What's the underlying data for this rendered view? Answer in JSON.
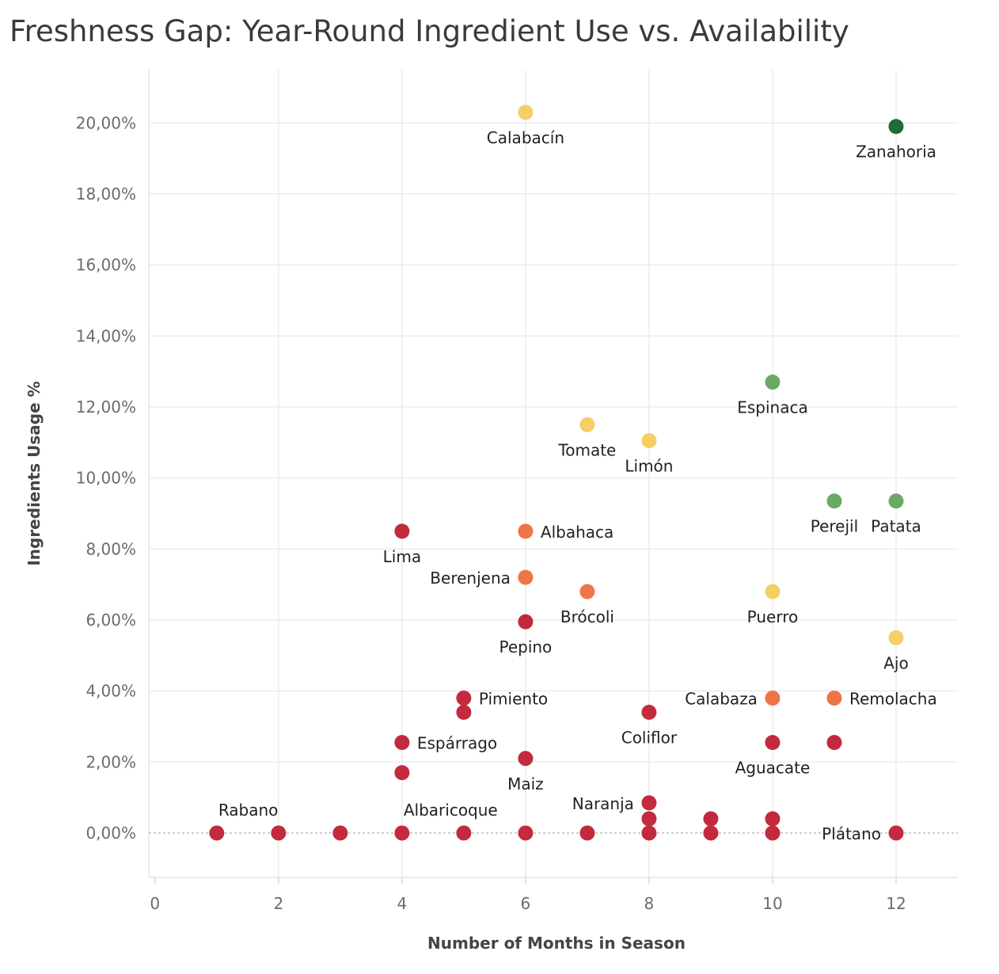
{
  "title": "Freshness Gap: Year-Round Ingredient Use vs. Availability",
  "chart_data": {
    "type": "scatter",
    "title": "Freshness Gap: Year-Round Ingredient Use vs. Availability",
    "xlabel": "Number of Months in Season",
    "ylabel": "Ingredients Usage %",
    "xlim": [
      -0.1,
      13
    ],
    "ylim": [
      -1.25,
      21.5
    ],
    "x_ticks": [
      {
        "value": 0,
        "label": "0"
      },
      {
        "value": 2,
        "label": "2"
      },
      {
        "value": 4,
        "label": "4"
      },
      {
        "value": 6,
        "label": "6"
      },
      {
        "value": 8,
        "label": "8"
      },
      {
        "value": 10,
        "label": "10"
      },
      {
        "value": 12,
        "label": "12"
      }
    ],
    "y_ticks": [
      {
        "value": 0,
        "label": "0,00%"
      },
      {
        "value": 2,
        "label": "2,00%"
      },
      {
        "value": 4,
        "label": "4,00%"
      },
      {
        "value": 6,
        "label": "6,00%"
      },
      {
        "value": 8,
        "label": "8,00%"
      },
      {
        "value": 10,
        "label": "10,00%"
      },
      {
        "value": 12,
        "label": "12,00%"
      },
      {
        "value": 14,
        "label": "14,00%"
      },
      {
        "value": 16,
        "label": "16,00%"
      },
      {
        "value": 18,
        "label": "18,00%"
      },
      {
        "value": 20,
        "label": "20,00%"
      }
    ],
    "grid": true,
    "reference_line": {
      "y": 0,
      "style": "dashed"
    },
    "colors": {
      "red": "#c32a3d",
      "orange": "#ee7546",
      "yellow": "#f4cf66",
      "green": "#6aa964",
      "darkgreen": "#1e6b3b"
    },
    "points": [
      {
        "x": 6,
        "y": 20.3,
        "name": "Calabacín",
        "color": "yellow",
        "label_pos": "below"
      },
      {
        "x": 12,
        "y": 19.9,
        "name": "Zanahoria",
        "color": "darkgreen",
        "label_pos": "below"
      },
      {
        "x": 10,
        "y": 12.7,
        "name": "Espinaca",
        "color": "green",
        "label_pos": "below"
      },
      {
        "x": 7,
        "y": 11.5,
        "name": "Tomate",
        "color": "yellow",
        "label_pos": "below"
      },
      {
        "x": 8,
        "y": 11.05,
        "name": "Limón",
        "color": "yellow",
        "label_pos": "below"
      },
      {
        "x": 11,
        "y": 9.35,
        "name": "Perejil",
        "color": "green",
        "label_pos": "below"
      },
      {
        "x": 12,
        "y": 9.35,
        "name": "Patata",
        "color": "green",
        "label_pos": "below"
      },
      {
        "x": 4,
        "y": 8.5,
        "name": "Lima",
        "color": "red",
        "label_pos": "below"
      },
      {
        "x": 6,
        "y": 8.5,
        "name": "Albahaca",
        "color": "orange",
        "label_pos": "right"
      },
      {
        "x": 6,
        "y": 7.2,
        "name": "Berenjena",
        "color": "orange",
        "label_pos": "left"
      },
      {
        "x": 7,
        "y": 6.8,
        "name": "Brócoli",
        "color": "orange",
        "label_pos": "below"
      },
      {
        "x": 10,
        "y": 6.8,
        "name": "Puerro",
        "color": "yellow",
        "label_pos": "below"
      },
      {
        "x": 6,
        "y": 5.95,
        "name": "Pepino",
        "color": "red",
        "label_pos": "below"
      },
      {
        "x": 12,
        "y": 5.5,
        "name": "Ajo",
        "color": "yellow",
        "label_pos": "below"
      },
      {
        "x": 5,
        "y": 3.8,
        "name": "Pimiento",
        "color": "red",
        "label_pos": "right"
      },
      {
        "x": 10,
        "y": 3.8,
        "name": "Calabaza",
        "color": "orange",
        "label_pos": "left"
      },
      {
        "x": 11,
        "y": 3.8,
        "name": "Remolacha",
        "color": "orange",
        "label_pos": "right"
      },
      {
        "x": 5,
        "y": 3.4,
        "name": "",
        "color": "red"
      },
      {
        "x": 8,
        "y": 3.4,
        "name": "Coliflor",
        "color": "red",
        "label_pos": "below"
      },
      {
        "x": 4,
        "y": 2.55,
        "name": "Espárrago",
        "color": "red",
        "label_pos": "right"
      },
      {
        "x": 10,
        "y": 2.55,
        "name": "Aguacate",
        "color": "red",
        "label_pos": "below"
      },
      {
        "x": 11,
        "y": 2.55,
        "name": "",
        "color": "red"
      },
      {
        "x": 6,
        "y": 2.1,
        "name": "Maiz",
        "color": "red",
        "label_pos": "below"
      },
      {
        "x": 4,
        "y": 1.7,
        "name": "",
        "color": "red"
      },
      {
        "x": 8,
        "y": 0.85,
        "name": "Naranja",
        "color": "red",
        "label_pos": "left"
      },
      {
        "x": 8,
        "y": 0.4,
        "name": "",
        "color": "red"
      },
      {
        "x": 9,
        "y": 0.4,
        "name": "",
        "color": "red"
      },
      {
        "x": 10,
        "y": 0.4,
        "name": "",
        "color": "red"
      },
      {
        "x": 1,
        "y": 0,
        "name": "Rabano",
        "color": "red",
        "label_pos": "above-right"
      },
      {
        "x": 2,
        "y": 0,
        "name": "",
        "color": "red"
      },
      {
        "x": 3,
        "y": 0,
        "name": "",
        "color": "red"
      },
      {
        "x": 4,
        "y": 0,
        "name": "Albaricoque",
        "color": "red",
        "label_pos": "above-right"
      },
      {
        "x": 5,
        "y": 0,
        "name": "",
        "color": "red"
      },
      {
        "x": 6,
        "y": 0,
        "name": "",
        "color": "red"
      },
      {
        "x": 7,
        "y": 0,
        "name": "",
        "color": "red"
      },
      {
        "x": 8,
        "y": 0,
        "name": "",
        "color": "red"
      },
      {
        "x": 9,
        "y": 0,
        "name": "",
        "color": "red"
      },
      {
        "x": 10,
        "y": 0,
        "name": "",
        "color": "red"
      },
      {
        "x": 12,
        "y": 0,
        "name": "Plátano",
        "color": "red",
        "label_pos": "left"
      }
    ]
  }
}
